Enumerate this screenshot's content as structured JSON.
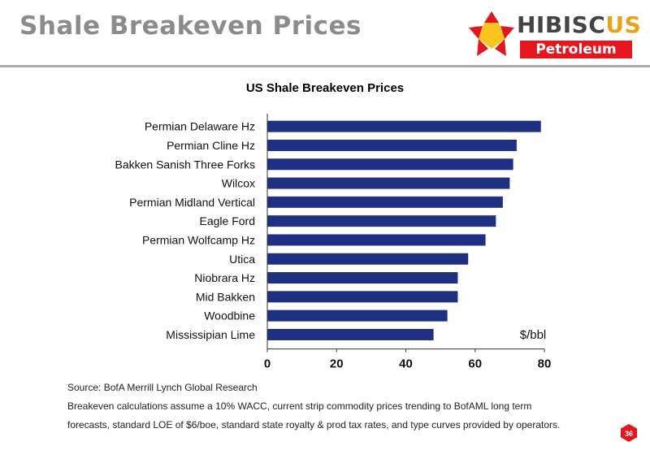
{
  "slide": {
    "title": "Shale Breakeven Prices",
    "page_number": "36"
  },
  "logo": {
    "word_1a": "HIBISC",
    "word_1b": "US",
    "word_2": "Petroleum"
  },
  "notes": {
    "source": "Source: BofA Merrill Lynch Global Research",
    "line_1": "Breakeven calculations assume a 10% WACC, current strip commodity prices trending to BofAML long term",
    "line_2": "forecasts, standard LOE of $6/boe, standard state royalty & prod tax rates, and type curves provided by operators."
  },
  "colors": {
    "bar": "#1f2f82",
    "accent": "#e4161e",
    "title_gray": "#8c8c8c"
  },
  "chart_data": {
    "type": "bar",
    "orientation": "horizontal",
    "title": "US Shale Breakeven Prices",
    "unit_label": "$/bbl",
    "categories": [
      "Permian Delaware Hz",
      "Permian Cline Hz",
      "Bakken Sanish Three Forks",
      "Wilcox",
      "Permian Midland Vertical",
      "Eagle Ford",
      "Permian Wolfcamp Hz",
      "Utica",
      "Niobrara Hz",
      "Mid Bakken",
      "Woodbine",
      "Mississipian Lime"
    ],
    "values": [
      79,
      72,
      71,
      70,
      68,
      66,
      63,
      58,
      55,
      55,
      52,
      48
    ],
    "xlim": [
      0,
      80
    ],
    "xticks": [
      0,
      20,
      40,
      60,
      80
    ],
    "grid": false
  }
}
